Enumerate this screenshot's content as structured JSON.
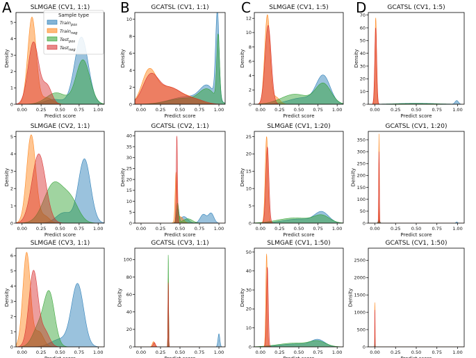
{
  "figure": {
    "panel_labels": [
      "A",
      "B",
      "C",
      "D"
    ],
    "legend": {
      "title": "Sample type",
      "entries": [
        {
          "base": "Train",
          "sub": "pos",
          "color": "#1f77b4"
        },
        {
          "base": "Train",
          "sub": "neg",
          "color": "#ff7f0e"
        },
        {
          "base": "Test",
          "sub": "pos",
          "color": "#2ca02c"
        },
        {
          "base": "Test",
          "sub": "neg",
          "color": "#d62728"
        }
      ]
    }
  },
  "chart_data": [
    {
      "type": "area",
      "title": "SLMGAE (CV1, 1:1)",
      "xlabel": "Predict score",
      "ylabel": "Density",
      "xlim": [
        -0.08,
        1.08
      ],
      "ylim": [
        0,
        5.6
      ],
      "xticks": [
        "0.00",
        "0.25",
        "0.50",
        "0.75",
        "1.00"
      ],
      "yticks": [
        0,
        1,
        2,
        3,
        4,
        5
      ],
      "series": [
        {
          "name": "Train_pos",
          "peaks": [
            [
              0.42,
              0.12,
              0.3
            ],
            [
              0.78,
              0.09,
              4.1
            ]
          ]
        },
        {
          "name": "Train_neg",
          "peaks": [
            [
              0.13,
              0.055,
              5.3
            ],
            [
              0.32,
              0.08,
              0.4
            ]
          ]
        },
        {
          "name": "Test_pos",
          "peaks": [
            [
              0.45,
              0.13,
              0.7
            ],
            [
              0.8,
              0.09,
              2.7
            ]
          ]
        },
        {
          "name": "Test_neg",
          "peaks": [
            [
              0.15,
              0.07,
              3.8
            ],
            [
              0.33,
              0.06,
              1.1
            ]
          ]
        }
      ]
    },
    {
      "type": "area",
      "title": "GCATSL (CV1, 1:1)",
      "xlabel": "Predict score",
      "ylabel": "Density",
      "xlim": [
        -0.08,
        1.08
      ],
      "ylim": [
        0,
        10.8
      ],
      "xticks": [
        "0.00",
        "0.25",
        "0.50",
        "0.75",
        "1.00"
      ],
      "yticks": [
        0,
        2,
        4,
        6,
        8,
        10
      ],
      "series": [
        {
          "name": "Train_pos",
          "peaks": [
            [
              0.6,
              0.22,
              0.9
            ],
            [
              0.85,
              0.09,
              1.8
            ],
            [
              0.98,
              0.022,
              10.3
            ]
          ]
        },
        {
          "name": "Train_neg",
          "peaks": [
            [
              0.1,
              0.09,
              3.7
            ],
            [
              0.35,
              0.15,
              2.0
            ],
            [
              0.65,
              0.12,
              0.6
            ]
          ]
        },
        {
          "name": "Test_pos",
          "peaks": [
            [
              0.55,
              0.2,
              0.7
            ],
            [
              0.85,
              0.1,
              1.6
            ],
            [
              0.99,
              0.018,
              7.6
            ]
          ]
        },
        {
          "name": "Test_neg",
          "peaks": [
            [
              0.12,
              0.1,
              3.2
            ],
            [
              0.38,
              0.15,
              1.9
            ],
            [
              0.7,
              0.12,
              0.5
            ]
          ]
        }
      ]
    },
    {
      "type": "area",
      "title": "SLMGAE (CV1, 1:5)",
      "xlabel": "Predict score",
      "ylabel": "Density",
      "xlim": [
        -0.08,
        1.08
      ],
      "ylim": [
        0,
        12.8
      ],
      "xticks": [
        "0.00",
        "0.25",
        "0.50",
        "0.75",
        "1.00"
      ],
      "yticks": [
        0,
        2,
        4,
        6,
        8,
        10,
        12
      ],
      "series": [
        {
          "name": "Train_pos",
          "peaks": [
            [
              0.55,
              0.18,
              0.9
            ],
            [
              0.82,
              0.09,
              3.8
            ]
          ]
        },
        {
          "name": "Train_neg",
          "peaks": [
            [
              0.09,
              0.035,
              12.4
            ],
            [
              0.2,
              0.05,
              1.0
            ]
          ]
        },
        {
          "name": "Test_pos",
          "peaks": [
            [
              0.45,
              0.18,
              1.4
            ],
            [
              0.82,
              0.1,
              2.8
            ]
          ]
        },
        {
          "name": "Test_neg",
          "peaks": [
            [
              0.1,
              0.04,
              11.0
            ]
          ]
        }
      ]
    },
    {
      "type": "area",
      "title": "GCATSL (CV1, 1:5)",
      "xlabel": "Predict score",
      "ylabel": "Density",
      "xlim": [
        -0.08,
        1.08
      ],
      "ylim": [
        0,
        72
      ],
      "xticks": [
        "0.00",
        "0.25",
        "0.50",
        "0.75",
        "1.00"
      ],
      "yticks": [
        0,
        10,
        20,
        30,
        40,
        50,
        60,
        70
      ],
      "series": [
        {
          "name": "Train_pos",
          "peaks": [
            [
              0.5,
              0.25,
              0.8
            ],
            [
              0.99,
              0.02,
              2.8
            ]
          ]
        },
        {
          "name": "Train_neg",
          "peaks": [
            [
              0.01,
              0.01,
              68
            ]
          ]
        },
        {
          "name": "Test_pos",
          "peaks": [
            [
              0.5,
              0.25,
              0.6
            ]
          ]
        },
        {
          "name": "Test_neg",
          "peaks": [
            [
              0.01,
              0.012,
              60
            ]
          ]
        }
      ]
    },
    {
      "type": "area",
      "title": "SLMGAE (CV2, 1:1)",
      "xlabel": "Predict score",
      "ylabel": "Density",
      "xlim": [
        -0.08,
        1.08
      ],
      "ylim": [
        0,
        5.3
      ],
      "xticks": [
        "0.00",
        "0.25",
        "0.50",
        "0.75",
        "1.00"
      ],
      "yticks": [
        0,
        1,
        2,
        3,
        4,
        5
      ],
      "series": [
        {
          "name": "Train_pos",
          "peaks": [
            [
              0.55,
              0.1,
              0.6
            ],
            [
              0.82,
              0.08,
              3.7
            ]
          ]
        },
        {
          "name": "Train_neg",
          "peaks": [
            [
              0.12,
              0.06,
              5.1
            ],
            [
              0.3,
              0.06,
              0.4
            ]
          ]
        },
        {
          "name": "Test_pos",
          "peaks": [
            [
              0.42,
              0.13,
              2.3
            ],
            [
              0.65,
              0.1,
              1.1
            ]
          ]
        },
        {
          "name": "Test_neg",
          "peaks": [
            [
              0.22,
              0.09,
              4.0
            ]
          ]
        }
      ]
    },
    {
      "type": "area",
      "title": "GCATSL (CV2, 1:1)",
      "xlabel": "Predict score",
      "ylabel": "Density",
      "xlim": [
        -0.08,
        1.08
      ],
      "ylim": [
        0,
        42
      ],
      "xticks": [
        "0.00",
        "0.25",
        "0.50",
        "0.75",
        "1.00"
      ],
      "yticks": [
        0,
        5,
        10,
        15,
        20,
        25,
        30,
        35,
        40
      ],
      "series": [
        {
          "name": "Train_pos",
          "peaks": [
            [
              0.47,
              0.015,
              6.0
            ],
            [
              0.55,
              0.05,
              3.0
            ],
            [
              0.8,
              0.04,
              4.0
            ],
            [
              0.9,
              0.035,
              4.5
            ]
          ]
        },
        {
          "name": "Train_neg",
          "peaks": [
            [
              0.45,
              0.012,
              22.0
            ],
            [
              0.5,
              0.04,
              3.0
            ]
          ]
        },
        {
          "name": "Test_pos",
          "peaks": [
            [
              0.47,
              0.015,
              9.0
            ],
            [
              0.6,
              0.06,
              2.0
            ]
          ]
        },
        {
          "name": "Test_neg",
          "peaks": [
            [
              0.46,
              0.008,
              40.0
            ]
          ]
        }
      ]
    },
    {
      "type": "area",
      "title": "SLMGAE (CV1, 1:20)",
      "xlabel": "Predict score",
      "ylabel": "Density",
      "xlim": [
        -0.08,
        1.08
      ],
      "ylim": [
        0,
        26.5
      ],
      "xticks": [
        "0.00",
        "0.25",
        "0.50",
        "0.75",
        "1.00"
      ],
      "yticks": [
        0,
        5,
        10,
        15,
        20,
        25
      ],
      "series": [
        {
          "name": "Train_pos",
          "peaks": [
            [
              0.5,
              0.2,
              1.2
            ],
            [
              0.8,
              0.09,
              3.0
            ]
          ]
        },
        {
          "name": "Train_neg",
          "peaks": [
            [
              0.08,
              0.018,
              25.0
            ]
          ]
        },
        {
          "name": "Test_pos",
          "peaks": [
            [
              0.45,
              0.22,
              1.5
            ],
            [
              0.8,
              0.1,
              2.0
            ]
          ]
        },
        {
          "name": "Test_neg",
          "peaks": [
            [
              0.09,
              0.02,
              22.0
            ]
          ]
        }
      ]
    },
    {
      "type": "area",
      "title": "GCATSL (CV1, 1:20)",
      "xlabel": "Predict score",
      "ylabel": "Density",
      "xlim": [
        -0.08,
        1.08
      ],
      "ylim": [
        0,
        385
      ],
      "xticks": [
        "0.00",
        "0.25",
        "0.50",
        "0.75",
        "1.00"
      ],
      "yticks": [
        0,
        50,
        100,
        150,
        200,
        250,
        300,
        350
      ],
      "series": [
        {
          "name": "Train_pos",
          "peaks": [
            [
              0.05,
              0.01,
              12
            ],
            [
              0.99,
              0.01,
              5
            ]
          ]
        },
        {
          "name": "Train_neg",
          "peaks": [
            [
              0.05,
              0.0035,
              375
            ]
          ]
        },
        {
          "name": "Test_pos",
          "peaks": [
            [
              0.05,
              0.01,
              8
            ]
          ]
        },
        {
          "name": "Test_neg",
          "peaks": [
            [
              0.05,
              0.004,
              300
            ]
          ]
        }
      ]
    },
    {
      "type": "area",
      "title": "SLMGAE (CV3, 1:1)",
      "xlabel": "Predict score",
      "ylabel": "Density",
      "xlim": [
        -0.08,
        1.08
      ],
      "ylim": [
        0,
        6.5
      ],
      "xticks": [
        "0.00",
        "0.25",
        "0.50",
        "0.75",
        "1.00"
      ],
      "yticks": [
        0,
        1,
        2,
        3,
        4,
        5,
        6
      ],
      "series": [
        {
          "name": "Train_pos",
          "peaks": [
            [
              0.5,
              0.12,
              0.5
            ],
            [
              0.73,
              0.08,
              4.1
            ]
          ]
        },
        {
          "name": "Train_neg",
          "peaks": [
            [
              0.06,
              0.05,
              6.2
            ],
            [
              0.22,
              0.06,
              1.0
            ]
          ]
        },
        {
          "name": "Test_pos",
          "peaks": [
            [
              0.22,
              0.08,
              1.3
            ],
            [
              0.36,
              0.07,
              3.4
            ]
          ]
        },
        {
          "name": "Test_neg",
          "peaks": [
            [
              0.15,
              0.06,
              5.0
            ],
            [
              0.3,
              0.06,
              1.0
            ]
          ]
        }
      ]
    },
    {
      "type": "area",
      "title": "GCATSL (CV3, 1:1)",
      "xlabel": "Predict score",
      "ylabel": "Density",
      "xlim": [
        -0.08,
        1.08
      ],
      "ylim": [
        0,
        113
      ],
      "xticks": [
        "0.00",
        "0.25",
        "0.50",
        "0.75",
        "1.00"
      ],
      "yticks": [
        0,
        20,
        40,
        60,
        80,
        100
      ],
      "series": [
        {
          "name": "Train_pos",
          "peaks": [
            [
              0.35,
              0.004,
              70
            ],
            [
              1.0,
              0.012,
              15
            ]
          ]
        },
        {
          "name": "Train_neg",
          "peaks": [
            [
              0.16,
              0.015,
              6
            ],
            [
              0.35,
              0.004,
              80
            ]
          ]
        },
        {
          "name": "Test_pos",
          "peaks": [
            [
              0.35,
              0.0035,
              108
            ]
          ]
        },
        {
          "name": "Test_neg",
          "peaks": [
            [
              0.35,
              0.004,
              75
            ],
            [
              0.17,
              0.015,
              5
            ]
          ]
        }
      ]
    },
    {
      "type": "area",
      "title": "SLMGAE (CV1, 1:50)",
      "xlabel": "Predict score",
      "ylabel": "Density",
      "xlim": [
        -0.08,
        1.08
      ],
      "ylim": [
        0,
        52
      ],
      "xticks": [
        "0.00",
        "0.25",
        "0.50",
        "0.75",
        "1.00"
      ],
      "yticks": [
        0,
        10,
        20,
        30,
        40,
        50
      ],
      "series": [
        {
          "name": "Train_pos",
          "peaks": [
            [
              0.45,
              0.2,
              1.5
            ],
            [
              0.75,
              0.09,
              3.5
            ]
          ]
        },
        {
          "name": "Train_neg",
          "peaks": [
            [
              0.08,
              0.01,
              49
            ]
          ]
        },
        {
          "name": "Test_pos",
          "peaks": [
            [
              0.45,
              0.22,
              2.0
            ],
            [
              0.75,
              0.1,
              2.5
            ]
          ]
        },
        {
          "name": "Test_neg",
          "peaks": [
            [
              0.09,
              0.012,
              42
            ]
          ]
        }
      ]
    },
    {
      "type": "area",
      "title": "GCATSL (CV1, 1:50)",
      "xlabel": "Predict score",
      "ylabel": "Density",
      "xlim": [
        -0.08,
        1.08
      ],
      "ylim": [
        0,
        2850
      ],
      "xticks": [
        "0.00",
        "0.25",
        "0.50",
        "0.75",
        "1.00"
      ],
      "yticks": [
        0,
        500,
        1000,
        1500,
        2000,
        2500
      ],
      "series": [
        {
          "name": "Train_pos",
          "peaks": [
            [
              0.0,
              0.002,
              400
            ]
          ]
        },
        {
          "name": "Train_neg",
          "peaks": [
            [
              0.0,
              0.0009,
              2780
            ]
          ]
        },
        {
          "name": "Test_pos",
          "peaks": [
            [
              0.0,
              0.002,
              100
            ]
          ]
        },
        {
          "name": "Test_neg",
          "peaks": [
            [
              0.0,
              0.001,
              2000
            ]
          ]
        }
      ]
    }
  ]
}
